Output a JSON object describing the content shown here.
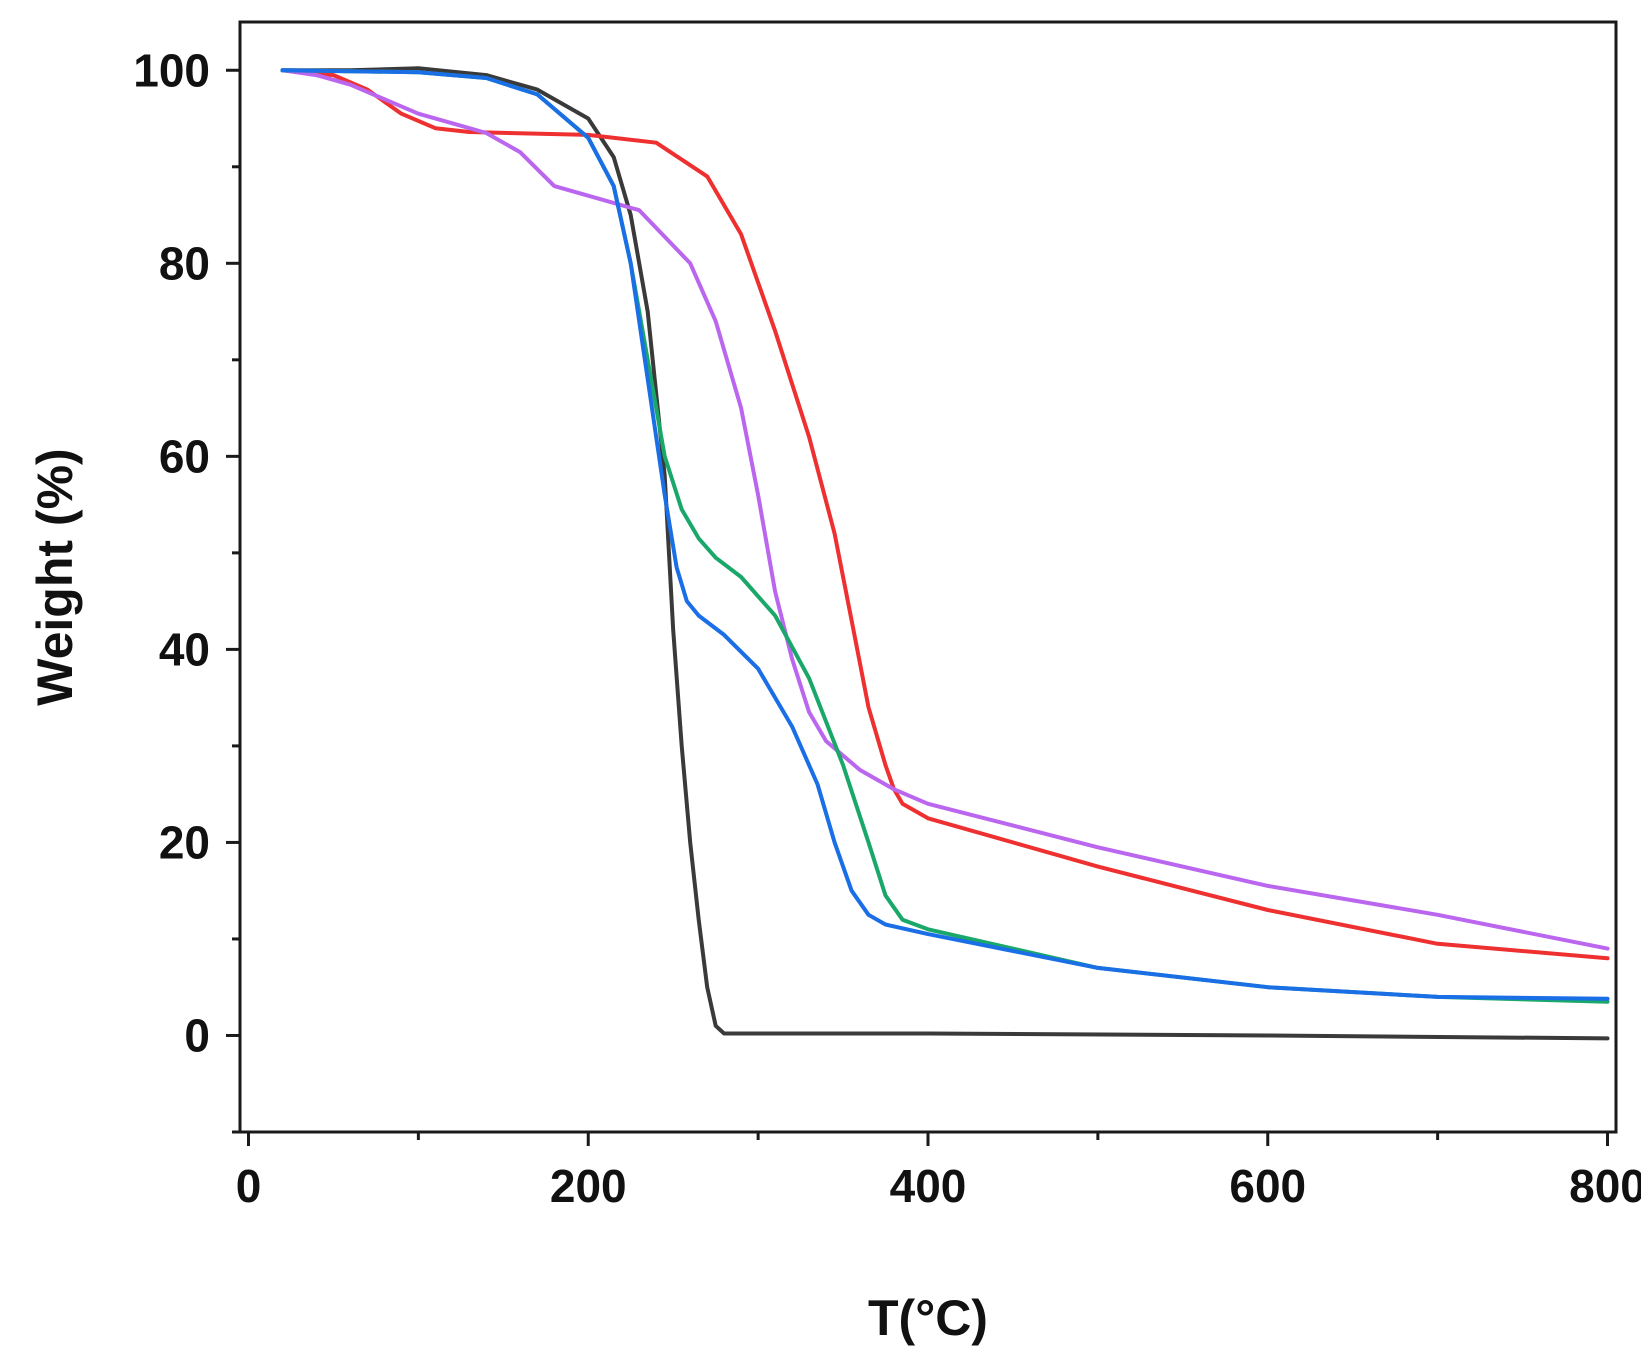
{
  "chart_data": {
    "type": "line",
    "title": "",
    "xlabel": "T(°C)",
    "ylabel": "Weight (%)",
    "xlim": [
      -5,
      805
    ],
    "ylim": [
      -10,
      105
    ],
    "xticks": [
      0,
      200,
      400,
      600,
      800
    ],
    "xtick_labels": [
      "0",
      "200",
      "400",
      "600",
      "800"
    ],
    "xminor": [
      100,
      300,
      500,
      700
    ],
    "yticks": [
      0,
      20,
      40,
      60,
      80,
      100
    ],
    "ytick_labels": [
      "0",
      "20",
      "40",
      "60",
      "80",
      "100"
    ],
    "yminor": [
      -10,
      10,
      30,
      50,
      70,
      90
    ],
    "grid": false,
    "legend": "none",
    "series": [
      {
        "name": "black",
        "color": "#3a3a3a",
        "x": [
          20,
          60,
          100,
          140,
          170,
          200,
          215,
          225,
          235,
          245,
          250,
          255,
          260,
          265,
          270,
          275,
          280,
          290,
          400,
          600,
          800
        ],
        "y": [
          100,
          100,
          100.2,
          99.5,
          98,
          95,
          91,
          85,
          75,
          58,
          42,
          30,
          20,
          12,
          5,
          1,
          0.2,
          0.2,
          0.2,
          0,
          -0.3
        ]
      },
      {
        "name": "red",
        "color": "#ee3030",
        "x": [
          20,
          50,
          70,
          90,
          110,
          130,
          200,
          240,
          270,
          290,
          310,
          330,
          345,
          355,
          365,
          375,
          380,
          385,
          400,
          500,
          600,
          700,
          800
        ],
        "y": [
          100,
          99.5,
          98,
          95.5,
          94,
          93.6,
          93.3,
          92.5,
          89,
          83,
          73,
          62,
          52,
          43,
          34,
          28,
          25.5,
          24,
          22.5,
          17.5,
          13,
          9.5,
          8
        ]
      },
      {
        "name": "purple",
        "color": "#bb66ee",
        "x": [
          20,
          40,
          60,
          80,
          100,
          120,
          140,
          160,
          180,
          200,
          230,
          260,
          275,
          290,
          300,
          310,
          320,
          330,
          340,
          360,
          380,
          400,
          500,
          600,
          700,
          800
        ],
        "y": [
          100,
          99.5,
          98.5,
          97,
          95.5,
          94.5,
          93.5,
          91.5,
          88,
          87,
          85.5,
          80,
          74,
          65,
          56,
          46,
          39,
          33.5,
          30.5,
          27.5,
          25.5,
          24,
          19.5,
          15.5,
          12.5,
          9
        ]
      },
      {
        "name": "green",
        "color": "#1aa86a",
        "x": [
          20,
          100,
          140,
          170,
          200,
          215,
          225,
          235,
          245,
          255,
          265,
          275,
          290,
          310,
          330,
          350,
          365,
          375,
          385,
          400,
          500,
          600,
          700,
          800
        ],
        "y": [
          100,
          99.8,
          99.2,
          97.5,
          93,
          88,
          80,
          70,
          60,
          54.5,
          51.5,
          49.5,
          47.5,
          43.5,
          37,
          28,
          20,
          14.5,
          12,
          11,
          7,
          5,
          4,
          3.5
        ]
      },
      {
        "name": "blue",
        "color": "#1a6ee6",
        "x": [
          20,
          100,
          140,
          170,
          200,
          215,
          225,
          235,
          245,
          252,
          258,
          265,
          280,
          300,
          320,
          335,
          345,
          355,
          365,
          375,
          400,
          500,
          600,
          700,
          800
        ],
        "y": [
          100,
          99.8,
          99.2,
          97.5,
          93,
          88,
          80,
          68,
          56,
          48.5,
          45,
          43.5,
          41.5,
          38,
          32,
          26,
          20,
          15,
          12.5,
          11.5,
          10.5,
          7,
          5,
          4,
          3.8
        ]
      }
    ]
  }
}
